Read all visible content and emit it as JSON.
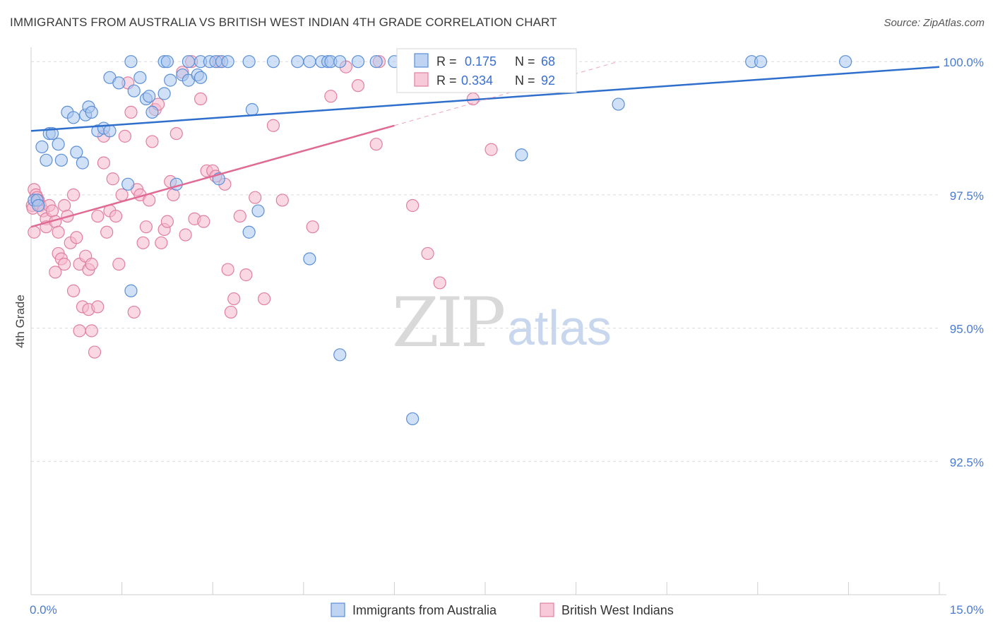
{
  "header": {
    "title": "IMMIGRANTS FROM AUSTRALIA VS BRITISH WEST INDIAN 4TH GRADE CORRELATION CHART",
    "source": "Source: ZipAtlas.com"
  },
  "watermark": {
    "zip": "ZIP",
    "atlas": "atlas"
  },
  "colors": {
    "blue_fill": "#a9c6ee",
    "blue_stroke": "#5b8fd6",
    "blue_line": "#2f6fcc",
    "pink_fill": "#f5b8cc",
    "pink_stroke": "#e07fa2",
    "pink_line": "#e06a94",
    "grid": "#dcdcdc",
    "tick_text": "#4a7bd0"
  },
  "stats_box": {
    "rows": [
      {
        "r_label": "R =",
        "r_value": "0.175",
        "n_label": "N =",
        "n_value": "68"
      },
      {
        "r_label": "R =",
        "r_value": "0.334",
        "n_label": "N =",
        "n_value": "92"
      }
    ]
  },
  "chart_data": {
    "type": "scatter",
    "ylabel": "4th Grade",
    "xlim": [
      0,
      15
    ],
    "ylim": [
      90,
      100.4
    ],
    "x_tick_labels": [
      {
        "value": 0,
        "label": "0.0%"
      },
      {
        "value": 15,
        "label": "15.0%"
      }
    ],
    "y_tick_labels": [
      {
        "value": 100,
        "label": "100.0%"
      },
      {
        "value": 97.5,
        "label": "97.5%"
      },
      {
        "value": 95,
        "label": "95.0%"
      },
      {
        "value": 92.5,
        "label": "92.5%"
      }
    ],
    "x_minor_ticks": [
      0,
      1.5,
      3,
      4.5,
      6,
      7.5,
      9,
      10.5,
      12,
      13.5,
      15
    ],
    "grid": true,
    "legend_position": "bottom-center",
    "series": [
      {
        "name": "Immigrants from Australia",
        "color": "blue",
        "trend": {
          "x0": 0,
          "y0": 98.7,
          "x1": 15,
          "y1": 99.9
        },
        "points": [
          [
            0.05,
            97.4
          ],
          [
            0.1,
            97.4
          ],
          [
            0.12,
            97.3
          ],
          [
            0.18,
            98.4
          ],
          [
            0.25,
            98.15
          ],
          [
            0.3,
            98.65
          ],
          [
            0.35,
            98.65
          ],
          [
            0.45,
            98.45
          ],
          [
            0.5,
            98.15
          ],
          [
            0.6,
            99.05
          ],
          [
            0.7,
            98.95
          ],
          [
            0.75,
            98.3
          ],
          [
            0.85,
            98.1
          ],
          [
            0.9,
            99.0
          ],
          [
            0.95,
            99.15
          ],
          [
            1.0,
            99.05
          ],
          [
            1.1,
            98.7
          ],
          [
            1.2,
            98.75
          ],
          [
            1.3,
            98.7
          ],
          [
            1.3,
            99.7
          ],
          [
            1.45,
            99.6
          ],
          [
            1.6,
            97.7
          ],
          [
            1.65,
            95.7
          ],
          [
            1.65,
            100.0
          ],
          [
            1.7,
            99.45
          ],
          [
            1.8,
            99.7
          ],
          [
            1.9,
            99.3
          ],
          [
            1.95,
            99.35
          ],
          [
            2.0,
            99.05
          ],
          [
            2.2,
            100.0
          ],
          [
            2.2,
            99.4
          ],
          [
            2.25,
            100.0
          ],
          [
            2.3,
            99.65
          ],
          [
            2.4,
            97.7
          ],
          [
            2.5,
            99.75
          ],
          [
            2.6,
            100.0
          ],
          [
            2.6,
            99.65
          ],
          [
            2.75,
            99.75
          ],
          [
            2.8,
            100.0
          ],
          [
            2.8,
            99.7
          ],
          [
            2.95,
            100.0
          ],
          [
            3.1,
            97.8
          ],
          [
            3.05,
            100.0
          ],
          [
            3.15,
            100.0
          ],
          [
            3.25,
            100.0
          ],
          [
            3.6,
            96.8
          ],
          [
            3.65,
            99.1
          ],
          [
            3.6,
            100.0
          ],
          [
            3.75,
            97.2
          ],
          [
            4.0,
            100.0
          ],
          [
            4.4,
            100.0
          ],
          [
            4.6,
            100.0
          ],
          [
            4.6,
            96.3
          ],
          [
            4.8,
            100.0
          ],
          [
            4.9,
            100.0
          ],
          [
            4.95,
            100.0
          ],
          [
            5.1,
            94.5
          ],
          [
            5.1,
            100.0
          ],
          [
            5.4,
            100.0
          ],
          [
            5.7,
            100.0
          ],
          [
            6.0,
            100.0
          ],
          [
            6.2,
            100.0
          ],
          [
            6.3,
            93.3
          ],
          [
            7.2,
            100.0
          ],
          [
            8.1,
            98.25
          ],
          [
            9.7,
            99.2
          ],
          [
            11.9,
            100.0
          ],
          [
            12.05,
            100.0
          ],
          [
            13.45,
            100.0
          ]
        ]
      },
      {
        "name": "British West Indians",
        "color": "pink",
        "trend": {
          "x0": 0,
          "y0": 96.9,
          "x1": 6,
          "y1": 98.8
        },
        "trend_extension": {
          "x0": 6,
          "y0": 98.8,
          "x1": 9.7,
          "y1": 100.0
        },
        "points": [
          [
            0.02,
            97.3
          ],
          [
            0.03,
            97.25
          ],
          [
            0.05,
            97.6
          ],
          [
            0.05,
            96.8
          ],
          [
            0.08,
            97.5
          ],
          [
            0.1,
            97.45
          ],
          [
            0.12,
            97.4
          ],
          [
            0.15,
            97.3
          ],
          [
            0.2,
            97.2
          ],
          [
            0.25,
            97.05
          ],
          [
            0.3,
            97.3
          ],
          [
            0.25,
            96.9
          ],
          [
            0.35,
            97.2
          ],
          [
            0.4,
            97.0
          ],
          [
            0.4,
            96.05
          ],
          [
            0.45,
            96.8
          ],
          [
            0.45,
            96.4
          ],
          [
            0.5,
            96.3
          ],
          [
            0.55,
            96.2
          ],
          [
            0.55,
            97.3
          ],
          [
            0.6,
            97.1
          ],
          [
            0.65,
            96.6
          ],
          [
            0.7,
            97.5
          ],
          [
            0.7,
            95.7
          ],
          [
            0.75,
            96.7
          ],
          [
            0.8,
            96.2
          ],
          [
            0.8,
            94.95
          ],
          [
            0.85,
            95.4
          ],
          [
            0.9,
            96.35
          ],
          [
            0.95,
            96.1
          ],
          [
            0.95,
            95.35
          ],
          [
            1.0,
            94.95
          ],
          [
            1.0,
            96.2
          ],
          [
            1.05,
            94.55
          ],
          [
            1.1,
            95.4
          ],
          [
            1.1,
            97.1
          ],
          [
            1.2,
            98.6
          ],
          [
            1.2,
            98.1
          ],
          [
            1.25,
            96.8
          ],
          [
            1.3,
            97.2
          ],
          [
            1.35,
            97.8
          ],
          [
            1.4,
            97.1
          ],
          [
            1.45,
            96.2
          ],
          [
            1.5,
            97.5
          ],
          [
            1.55,
            98.6
          ],
          [
            1.6,
            99.6
          ],
          [
            1.65,
            99.05
          ],
          [
            1.7,
            95.3
          ],
          [
            1.75,
            97.6
          ],
          [
            1.8,
            97.5
          ],
          [
            1.85,
            96.6
          ],
          [
            1.9,
            96.9
          ],
          [
            1.95,
            97.4
          ],
          [
            2.0,
            98.5
          ],
          [
            2.05,
            99.1
          ],
          [
            2.1,
            99.2
          ],
          [
            2.15,
            96.6
          ],
          [
            2.2,
            96.85
          ],
          [
            2.25,
            97.0
          ],
          [
            2.3,
            97.75
          ],
          [
            2.35,
            97.5
          ],
          [
            2.4,
            98.65
          ],
          [
            2.5,
            99.8
          ],
          [
            2.55,
            96.75
          ],
          [
            2.65,
            100.0
          ],
          [
            2.7,
            97.05
          ],
          [
            2.8,
            99.3
          ],
          [
            2.85,
            97.0
          ],
          [
            2.9,
            97.95
          ],
          [
            3.0,
            97.95
          ],
          [
            3.05,
            97.85
          ],
          [
            3.1,
            100.0
          ],
          [
            3.2,
            97.7
          ],
          [
            3.25,
            96.1
          ],
          [
            3.3,
            95.3
          ],
          [
            3.35,
            95.55
          ],
          [
            3.45,
            97.1
          ],
          [
            3.55,
            96.0
          ],
          [
            3.7,
            97.45
          ],
          [
            3.85,
            95.55
          ],
          [
            4.0,
            98.8
          ],
          [
            4.15,
            97.4
          ],
          [
            4.65,
            96.9
          ],
          [
            4.95,
            99.35
          ],
          [
            5.2,
            99.9
          ],
          [
            5.4,
            99.55
          ],
          [
            5.7,
            98.45
          ],
          [
            5.75,
            100.0
          ],
          [
            6.3,
            97.3
          ],
          [
            6.55,
            96.4
          ],
          [
            6.75,
            95.85
          ],
          [
            7.3,
            99.3
          ],
          [
            7.6,
            98.35
          ],
          [
            7.65,
            100.0
          ]
        ]
      }
    ]
  }
}
